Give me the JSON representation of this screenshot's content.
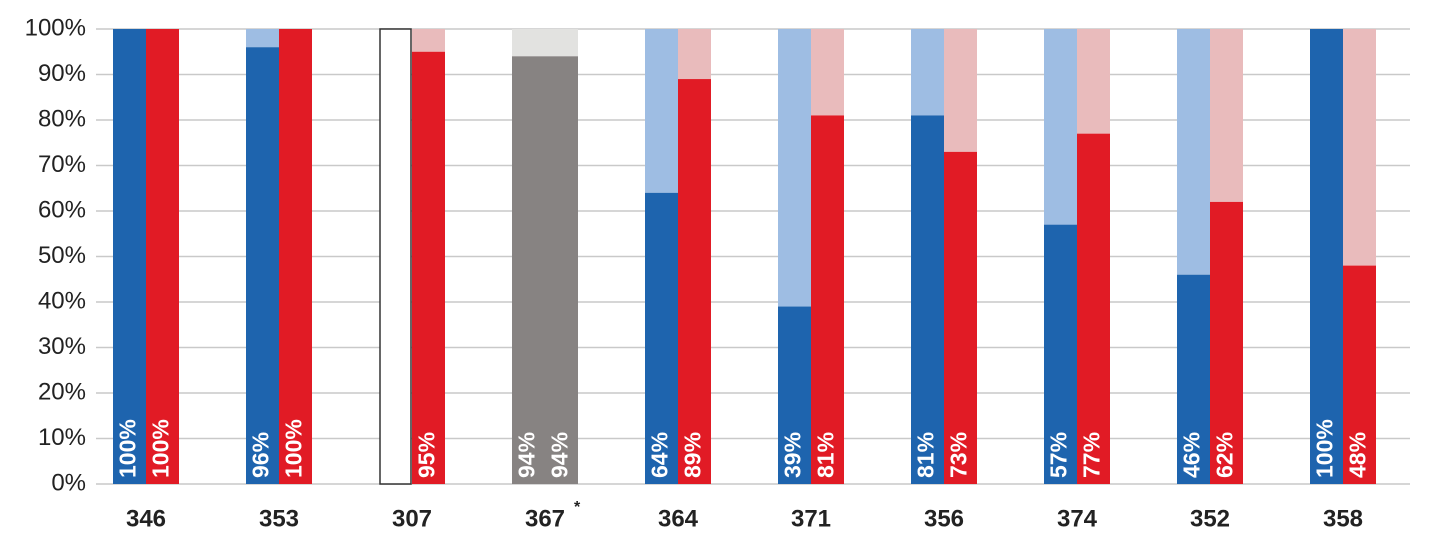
{
  "chart_data": {
    "type": "bar",
    "categories": [
      "346",
      "353",
      "307",
      "367",
      "364",
      "371",
      "356",
      "374",
      "352",
      "358"
    ],
    "annotations": [
      {
        "category": "367",
        "text": "*"
      }
    ],
    "series": [
      {
        "color": "#1e64ae",
        "remainder_color": "#9ebde3",
        "values": [
          100,
          96,
          null,
          94,
          64,
          39,
          81,
          57,
          46,
          100
        ],
        "value_labels": [
          "100%",
          "96%",
          null,
          "94%",
          "64%",
          "39%",
          "81%",
          "57%",
          "46%",
          "100%"
        ]
      },
      {
        "color": "#e11b25",
        "remainder_color": "#e9bbbc",
        "values": [
          100,
          100,
          95,
          94,
          89,
          81,
          73,
          77,
          62,
          48
        ],
        "value_labels": [
          "100%",
          "100%",
          "95%",
          "94%",
          "89%",
          "81%",
          "73%",
          "77%",
          "62%",
          "48%"
        ]
      }
    ],
    "highlight": {
      "category": "367",
      "color": "#878382",
      "remainder_color": "#e2e2e0"
    },
    "ylim": [
      0,
      100
    ],
    "yticks": [
      {
        "value": 0,
        "label": "0%"
      },
      {
        "value": 10,
        "label": "10%"
      },
      {
        "value": 20,
        "label": "20%"
      },
      {
        "value": 30,
        "label": "30%"
      },
      {
        "value": 40,
        "label": "40%"
      },
      {
        "value": 50,
        "label": "50%"
      },
      {
        "value": 60,
        "label": "60%"
      },
      {
        "value": 70,
        "label": "70%"
      },
      {
        "value": 80,
        "label": "80%"
      },
      {
        "value": 90,
        "label": "90%"
      },
      {
        "value": 100,
        "label": "100%"
      }
    ],
    "grid": true
  }
}
